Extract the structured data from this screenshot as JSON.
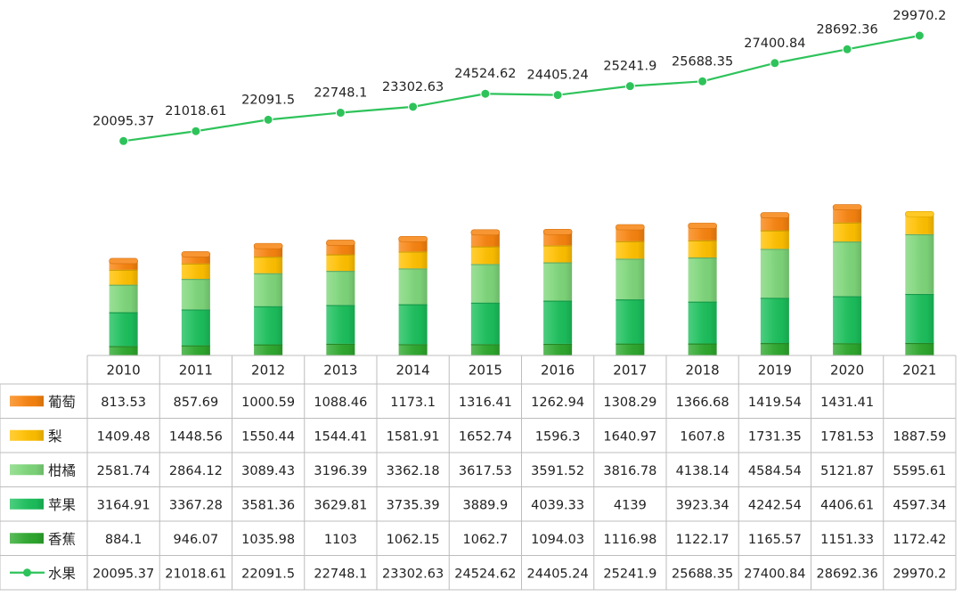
{
  "chart_data": {
    "type": "bar",
    "stacked": true,
    "categories": [
      "2010",
      "2011",
      "2012",
      "2013",
      "2014",
      "2015",
      "2016",
      "2017",
      "2018",
      "2019",
      "2020",
      "2021"
    ],
    "series": [
      {
        "name": "香蕉",
        "kind": "bar",
        "color": "#2ea82e",
        "values": [
          884.1,
          946.07,
          1035.98,
          1103,
          1062.15,
          1062.7,
          1094.03,
          1116.98,
          1122.17,
          1165.57,
          1151.33,
          1172.42
        ],
        "display": [
          "884.1",
          "946.07",
          "1035.98",
          "1103",
          "1062.15",
          "1062.7",
          "1094.03",
          "1116.98",
          "1122.17",
          "1165.57",
          "1151.33",
          "1172.42"
        ]
      },
      {
        "name": "苹果",
        "kind": "bar",
        "color": "#1cbf5c",
        "values": [
          3164.91,
          3367.28,
          3581.36,
          3629.81,
          3735.39,
          3889.9,
          4039.33,
          4139,
          3923.34,
          4242.54,
          4406.61,
          4597.34
        ],
        "display": [
          "3164.91",
          "3367.28",
          "3581.36",
          "3629.81",
          "3735.39",
          "3889.9",
          "4039.33",
          "4139",
          "3923.34",
          "4242.54",
          "4406.61",
          "4597.34"
        ]
      },
      {
        "name": "柑橘",
        "kind": "bar",
        "color": "#7ed67a",
        "values": [
          2581.74,
          2864.12,
          3089.43,
          3196.39,
          3362.18,
          3617.53,
          3591.52,
          3816.78,
          4138.14,
          4584.54,
          5121.87,
          5595.61
        ],
        "display": [
          "2581.74",
          "2864.12",
          "3089.43",
          "3196.39",
          "3362.18",
          "3617.53",
          "3591.52",
          "3816.78",
          "4138.14",
          "4584.54",
          "5121.87",
          "5595.61"
        ]
      },
      {
        "name": "梨",
        "kind": "bar",
        "color": "#ffc000",
        "values": [
          1409.48,
          1448.56,
          1550.44,
          1544.41,
          1581.91,
          1652.74,
          1596.3,
          1640.97,
          1607.8,
          1731.35,
          1781.53,
          1887.59
        ],
        "display": [
          "1409.48",
          "1448.56",
          "1550.44",
          "1544.41",
          "1581.91",
          "1652.74",
          "1596.3",
          "1640.97",
          "1607.8",
          "1731.35",
          "1781.53",
          "1887.59"
        ]
      },
      {
        "name": "葡萄",
        "kind": "bar",
        "color": "#f7830f",
        "values": [
          813.53,
          857.69,
          1000.59,
          1088.46,
          1173.1,
          1316.41,
          1262.94,
          1308.29,
          1366.68,
          1419.54,
          1431.41,
          null
        ],
        "display": [
          "813.53",
          "857.69",
          "1000.59",
          "1088.46",
          "1173.1",
          "1316.41",
          "1262.94",
          "1308.29",
          "1366.68",
          "1419.54",
          "1431.41",
          ""
        ]
      },
      {
        "name": "水果",
        "kind": "line",
        "color": "#2ec35a",
        "values": [
          20095.37,
          21018.61,
          22091.5,
          22748.1,
          23302.63,
          24524.62,
          24405.24,
          25241.9,
          25688.35,
          27400.84,
          28692.36,
          29970.2
        ],
        "display": [
          "20095.37",
          "21018.61",
          "22091.5",
          "22748.1",
          "23302.63",
          "24524.62",
          "24405.24",
          "25241.9",
          "25688.35",
          "27400.84",
          "28692.36",
          "29970.2"
        ]
      }
    ],
    "table_row_order": [
      "葡萄",
      "梨",
      "柑橘",
      "苹果",
      "香蕉",
      "水果"
    ],
    "title": "",
    "xlabel": "",
    "ylabel": "",
    "grid": false,
    "legend": "data-table"
  }
}
